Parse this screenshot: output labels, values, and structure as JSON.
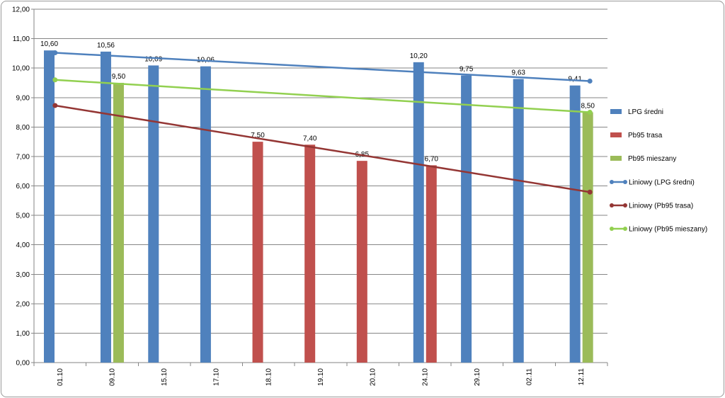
{
  "chart_data": {
    "type": "bar",
    "title": "",
    "xlabel": "",
    "ylabel": "",
    "ylim": [
      0,
      12
    ],
    "y_tick_step": 1,
    "y_tick_labels": [
      "0,00",
      "1,00",
      "2,00",
      "3,00",
      "4,00",
      "5,00",
      "6,00",
      "7,00",
      "8,00",
      "9,00",
      "10,00",
      "11,00",
      "12,00"
    ],
    "grid": true,
    "legend_position": "right",
    "categories": [
      "01.10",
      "09.10",
      "15.10",
      "17.10",
      "18.10",
      "19.10",
      "20.10",
      "24.10",
      "29.10",
      "02.11",
      "12.11"
    ],
    "series": [
      {
        "name": "LPG średni",
        "color": "#4f81bd",
        "values": [
          10.6,
          10.56,
          10.09,
          10.06,
          null,
          null,
          null,
          10.2,
          9.75,
          9.63,
          9.41
        ],
        "labels": [
          "10,60",
          "10,56",
          "10,09",
          "10,06",
          "",
          "",
          "",
          "10,20",
          "9,75",
          "9,63",
          "9,41"
        ]
      },
      {
        "name": "Pb95 trasa",
        "color": "#c0504d",
        "values": [
          null,
          null,
          null,
          null,
          7.5,
          7.4,
          6.85,
          6.7,
          null,
          null,
          null
        ],
        "labels": [
          "",
          "",
          "",
          "",
          "7,50",
          "7,40",
          "6,85",
          "6,70",
          "",
          "",
          ""
        ]
      },
      {
        "name": "Pb95 mieszany",
        "color": "#9bbb59",
        "values": [
          null,
          9.5,
          null,
          null,
          null,
          null,
          null,
          null,
          null,
          null,
          8.5
        ],
        "labels": [
          "",
          "9,50",
          "",
          "",
          "",
          "",
          "",
          "",
          "",
          "",
          "8,50"
        ]
      }
    ],
    "trendlines": [
      {
        "name": "Liniowy (LPG średni)",
        "color": "#4f81bd",
        "start": 10.52,
        "end": 9.56
      },
      {
        "name": "Liniowy (Pb95 trasa)",
        "color": "#943634",
        "start": 8.73,
        "end": 5.79
      },
      {
        "name": "Liniowy (Pb95 mieszany)",
        "color": "#92d050",
        "start": 9.6,
        "end": 8.5
      }
    ]
  }
}
